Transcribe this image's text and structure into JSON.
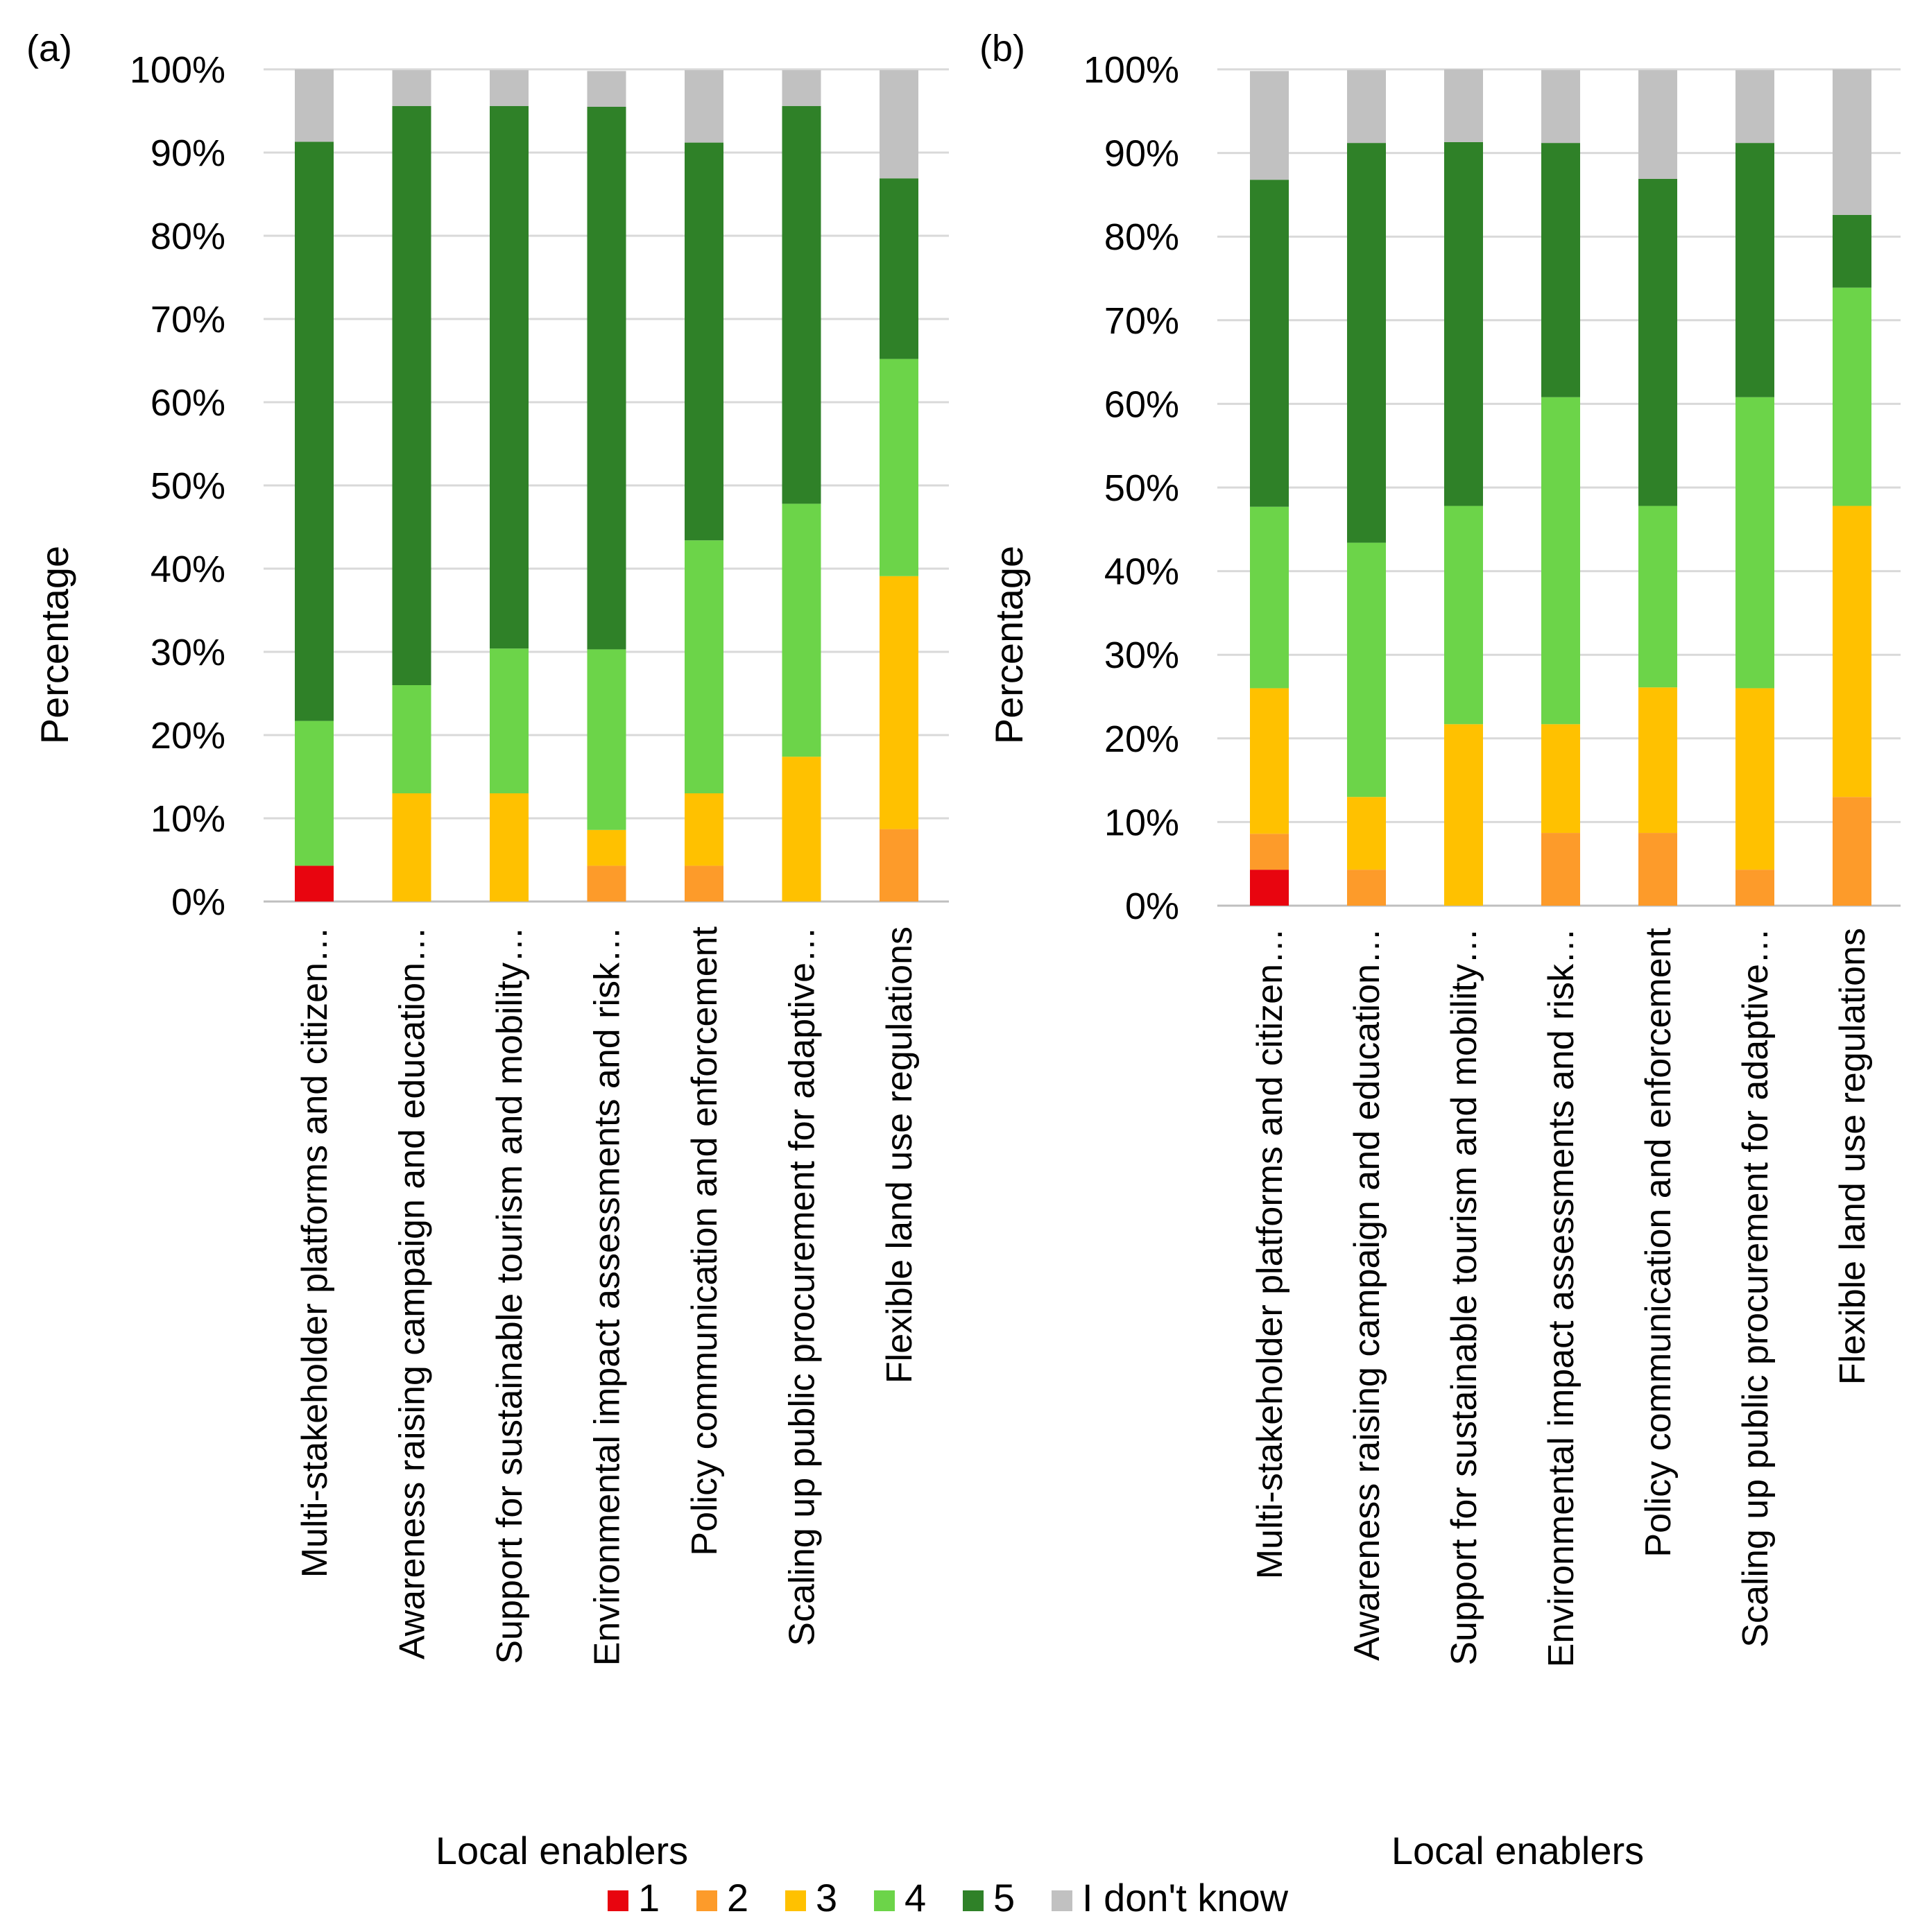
{
  "legend": {
    "placement": "bottom-center",
    "items": [
      {
        "label": "1",
        "color": "#e8050f"
      },
      {
        "label": "2",
        "color": "#fd9b2a"
      },
      {
        "label": "3",
        "color": "#ffc100"
      },
      {
        "label": "4",
        "color": "#6cd449"
      },
      {
        "label": "5",
        "color": "#2f8128"
      },
      {
        "label": "I don't know",
        "color": "#c1c1c1"
      }
    ]
  },
  "chart_data": [
    {
      "type": "bar",
      "stacked": true,
      "panel_label": "(a)",
      "xlabel": "Local enablers",
      "ylabel": "Percentage",
      "ylim": [
        0,
        100
      ],
      "yticks": [
        "0%",
        "10%",
        "20%",
        "30%",
        "40%",
        "50%",
        "60%",
        "70%",
        "80%",
        "90%",
        "100%"
      ],
      "grid": true,
      "categories": [
        "Multi-stakeholder platforms and citizen…",
        "Awareness raising campaign and education…",
        "Support for sustainable tourism and mobility…",
        "Environmental impact assessments and risk…",
        "Policy communication and enforcement",
        "Scaling up public procurement for adaptive…",
        "Flexible land use regulations"
      ],
      "series": [
        {
          "name": "1",
          "values": [
            4.3,
            0,
            0,
            0,
            0,
            0,
            0
          ]
        },
        {
          "name": "2",
          "values": [
            0,
            0,
            0,
            4.3,
            4.3,
            0,
            8.7
          ]
        },
        {
          "name": "3",
          "values": [
            0,
            13.0,
            13.0,
            4.3,
            8.7,
            17.4,
            30.4
          ]
        },
        {
          "name": "4",
          "values": [
            17.4,
            13.0,
            17.4,
            21.7,
            30.4,
            30.4,
            26.1
          ]
        },
        {
          "name": "5",
          "values": [
            69.6,
            69.6,
            65.2,
            65.2,
            47.8,
            47.8,
            21.7
          ]
        },
        {
          "name": "I don't know",
          "values": [
            8.7,
            4.3,
            4.3,
            4.3,
            8.7,
            4.3,
            13.0
          ]
        }
      ]
    },
    {
      "type": "bar",
      "stacked": true,
      "panel_label": "(b)",
      "xlabel": "Local enablers",
      "ylabel": "Percentage",
      "ylim": [
        0,
        100
      ],
      "yticks": [
        "0%",
        "10%",
        "20%",
        "30%",
        "40%",
        "50%",
        "60%",
        "70%",
        "80%",
        "90%",
        "100%"
      ],
      "grid": true,
      "categories": [
        "Multi-stakeholder platforms and citizen…",
        "Awareness raising campaign and education…",
        "Support for sustainable tourism and mobility…",
        "Environmental impact assessments and risk…",
        "Policy communication and enforcement",
        "Scaling up public procurement for adaptive…",
        "Flexible land use regulations"
      ],
      "series": [
        {
          "name": "1",
          "values": [
            4.3,
            0,
            0,
            0,
            0,
            0,
            0
          ]
        },
        {
          "name": "2",
          "values": [
            4.3,
            4.3,
            0,
            8.7,
            8.7,
            4.3,
            13.0
          ]
        },
        {
          "name": "3",
          "values": [
            17.4,
            8.7,
            21.7,
            13.0,
            17.4,
            21.7,
            34.8
          ]
        },
        {
          "name": "4",
          "values": [
            21.7,
            30.4,
            26.1,
            39.1,
            21.7,
            34.8,
            26.1
          ]
        },
        {
          "name": "5",
          "values": [
            39.1,
            47.8,
            43.5,
            30.4,
            39.1,
            30.4,
            8.7
          ]
        },
        {
          "name": "I don't know",
          "values": [
            13.0,
            8.7,
            8.7,
            8.7,
            13.0,
            8.7,
            17.4
          ]
        }
      ]
    }
  ]
}
